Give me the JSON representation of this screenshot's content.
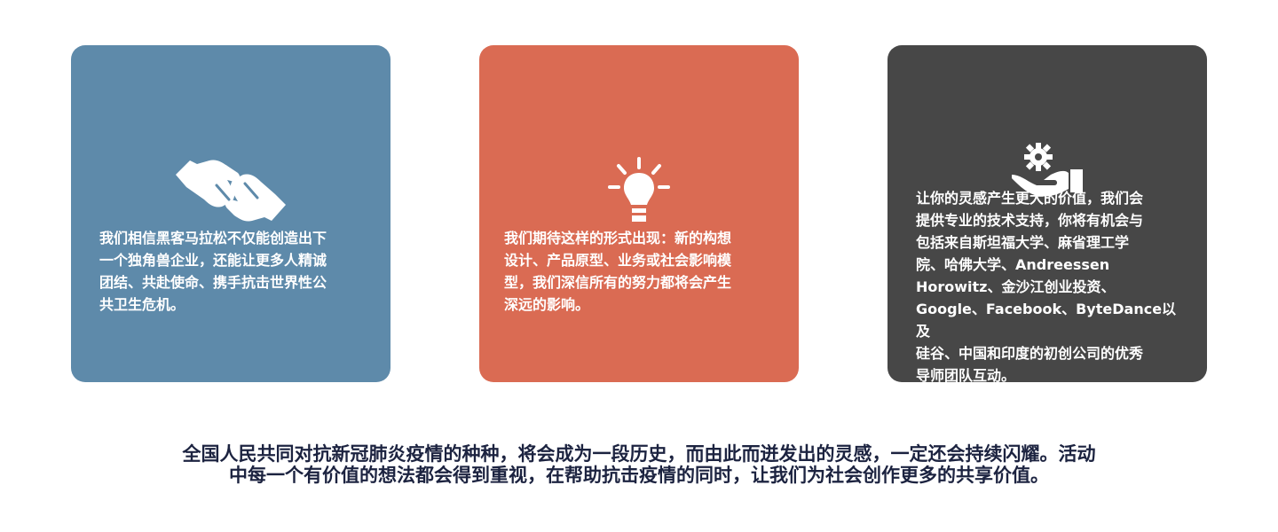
{
  "colors": {
    "card_blue": "#5e8aaa",
    "card_orange": "#da6b53",
    "card_dark": "#474747",
    "card_text": "#ffffff",
    "footer_text": "#1c2340"
  },
  "cards": [
    {
      "icon": "handshake-icon",
      "text": "我们相信黑客马拉松不仅能创造出下\n一个独角兽企业，还能让更多人精诚\n团结、共赴使命、携手抗击世界性公\n共卫生危机。"
    },
    {
      "icon": "lightbulb-icon",
      "text": "我们期待这样的形式出现：新的构想\n设计、产品原型、业务或社会影响模\n型，我们深信所有的努力都将会产生\n深远的影响。"
    },
    {
      "icon": "hand-gear-icon",
      "text": "让你的灵感产生更大的价值，我们会\n提供专业的技术支持，你将有机会与\n包括来自斯坦福大学、麻省理工学\n院、哈佛大学、Andreessen\nHorowitz、金沙江创业投资、\nGoogle、Facebook、ByteDance以及\n硅谷、中国和印度的初创公司的优秀\n导师团队互动。"
    }
  ],
  "footer": {
    "text": "全国人民共同对抗新冠肺炎疫情的种种，将会成为一段历史，而由此而迸发出的灵感，一定还会持续闪耀。活动\n中每一个有价值的想法都会得到重视，在帮助抗击疫情的同时，让我们为社会创作更多的共享价值。"
  }
}
